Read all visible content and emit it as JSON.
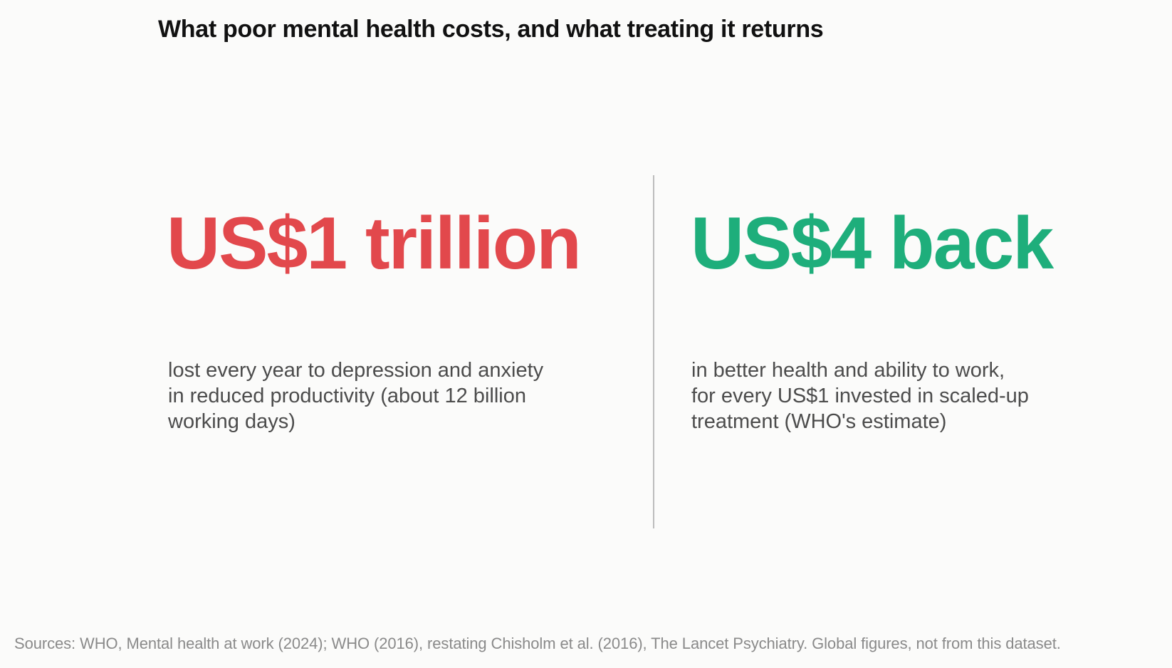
{
  "title": "What poor mental health costs, and what treating it returns",
  "left": {
    "figure": "US$1 trillion",
    "lines": [
      "lost every year to depression and anxiety",
      "in reduced productivity (about 12 billion",
      "working days)"
    ]
  },
  "right": {
    "figure": "US$4 back",
    "lines": [
      "in better health and ability to work,",
      "for every US$1 invested in scaled-up",
      "treatment (WHO's estimate)"
    ]
  },
  "sources": "Sources: WHO, Mental health at work (2024); WHO (2016), restating Chisholm et al. (2016), The Lancet Psychiatry. Global figures, not from this dataset.",
  "colors": {
    "cost": "#e2484c",
    "return": "#1eae7b",
    "divider": "#bdbdbd"
  }
}
